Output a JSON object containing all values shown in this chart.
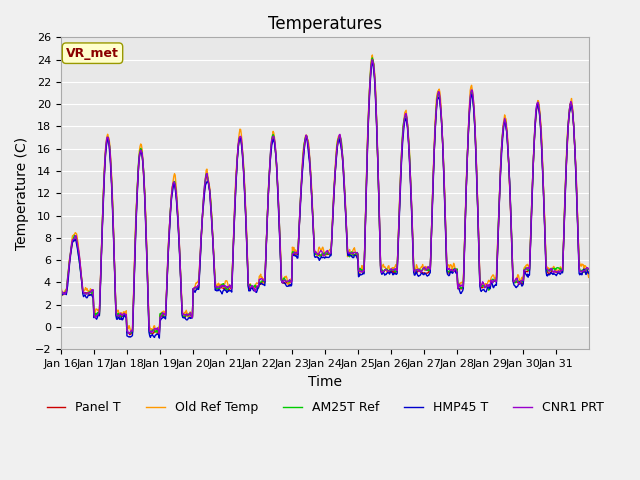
{
  "title": "Temperatures",
  "xlabel": "Time",
  "ylabel": "Temperature (C)",
  "ylim": [
    -2,
    26
  ],
  "yticks": [
    -2,
    0,
    2,
    4,
    6,
    8,
    10,
    12,
    14,
    16,
    18,
    20,
    22,
    24,
    26
  ],
  "x_labels": [
    "Jan 16",
    "Jan 17",
    "Jan 18",
    "Jan 19",
    "Jan 20",
    "Jan 21",
    "Jan 22",
    "Jan 23",
    "Jan 24",
    "Jan 25",
    "Jan 26",
    "Jan 27",
    "Jan 28",
    "Jan 29",
    "Jan 30",
    "Jan 31"
  ],
  "series_names": [
    "Panel T",
    "Old Ref Temp",
    "AM25T Ref",
    "HMP45 T",
    "CNR1 PRT"
  ],
  "series_colors": [
    "#cc0000",
    "#ff9900",
    "#00cc00",
    "#0000cc",
    "#9900cc"
  ],
  "vr_met_label": "VR_met",
  "background_color": "#e8e8e8",
  "plot_bg_color": "#e8e8e8",
  "title_fontsize": 12,
  "axis_label_fontsize": 10,
  "tick_fontsize": 8,
  "legend_fontsize": 9,
  "linewidth": 1.0,
  "daily_mins": [
    3,
    1,
    -0.5,
    1.0,
    3.5,
    3.5,
    4,
    6.5,
    6.5,
    5,
    5,
    5,
    3.5,
    4,
    5,
    5
  ],
  "daily_maxs": [
    8,
    17,
    16,
    13,
    13.5,
    17,
    17,
    17,
    17,
    24,
    19,
    21,
    21,
    18.5,
    20,
    20
  ],
  "offsets": [
    0.0,
    0.3,
    0.1,
    -0.2,
    0.15
  ],
  "noise_scales": [
    0.15,
    0.4,
    0.2,
    0.25,
    0.2
  ]
}
